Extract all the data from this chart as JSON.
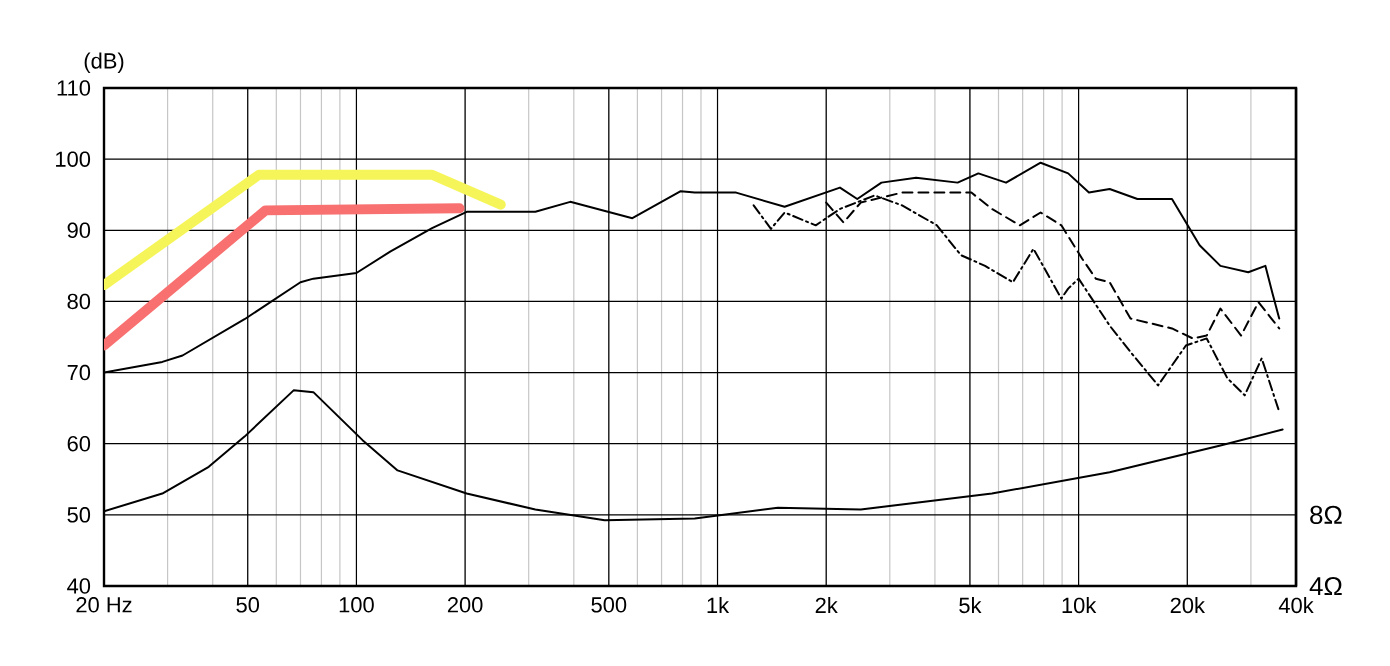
{
  "chart_data": {
    "type": "line",
    "ylabel": "(dB)",
    "log": "x",
    "grid": true,
    "xlim": [
      20,
      40000
    ],
    "ylim": [
      40,
      110
    ],
    "y2lim": [
      4,
      32
    ],
    "xticks": [
      {
        "value": 20,
        "label": "20 Hz"
      },
      50,
      100,
      200,
      500,
      {
        "value": 1000,
        "label": "1k"
      },
      {
        "value": 2000,
        "label": "2k"
      },
      {
        "value": 5000,
        "label": "5k"
      },
      {
        "value": 10000,
        "label": "10k"
      },
      {
        "value": 20000,
        "label": "20k"
      },
      {
        "value": 40000,
        "label": "40k"
      }
    ],
    "yticks": [
      40,
      50,
      60,
      70,
      80,
      90,
      100,
      110
    ],
    "y2ticks": [
      {
        "value": 8,
        "label": "8Ω"
      },
      {
        "value": 4,
        "label": "4Ω"
      }
    ],
    "series": [
      {
        "color": "#000000",
        "line_style": "solid",
        "x": [
          20,
          29,
          33,
          49,
          70,
          76,
          100,
          124,
          162,
          202,
          251,
          313,
          391,
          581,
          791,
          865,
          1126,
          1534,
          2183,
          2438,
          2844,
          3548,
          4623,
          5277,
          6295,
          7850,
          9355,
          10680,
          12190,
          14550,
          18140,
          21630,
          24700,
          29500,
          32900,
          34360,
          35940
        ],
        "values": [
          70,
          71.5,
          72.4,
          77.5,
          82.7,
          83.2,
          84,
          87,
          90.3,
          92.6,
          92.6,
          92.6,
          94,
          91.7,
          95.5,
          95.3,
          95.3,
          93.3,
          96,
          94.4,
          96.7,
          97.4,
          96.7,
          98,
          96.7,
          99.5,
          98,
          95.3,
          95.8,
          94.4,
          94.4,
          87.9,
          85,
          84.1,
          85,
          81.3,
          77.6
        ]
      },
      {
        "color": "#000000",
        "line_style": "dashed",
        "x": [
          2000,
          2233,
          2493,
          3245,
          5047,
          5754,
          6873,
          7850,
          8958,
          10230,
          11160,
          12190,
          13920,
          18140,
          20700,
          22630,
          24700,
          28180,
          31480,
          35940
        ],
        "values": [
          93.9,
          91.1,
          93.9,
          95.3,
          95.3,
          93,
          90.7,
          92.5,
          90.7,
          86,
          83.2,
          82.7,
          77.6,
          76.2,
          74.8,
          75.2,
          79,
          75.2,
          79.9,
          76.2
        ]
      },
      {
        "color": "#000000",
        "line_style": "dotted",
        "x": [
          1259,
          1406,
          1534,
          1871,
          2183,
          2723,
          3245,
          4050,
          4722,
          5508,
          6577,
          7500,
          8958,
          9355,
          10000,
          12190,
          13920,
          16600,
          19820,
          22630,
          25820,
          28840,
          32140,
          35940
        ],
        "values": [
          93.5,
          90.2,
          92.5,
          90.7,
          93,
          94.9,
          93.5,
          90.7,
          86.5,
          85,
          82.7,
          87.4,
          80.4,
          81.8,
          83.2,
          76.6,
          72.9,
          68.2,
          73.8,
          74.8,
          69.2,
          66.8,
          72,
          64.5
        ]
      },
      {
        "color": "#000000",
        "line_style": "solid",
        "axis": "y2",
        "x": [
          20,
          29,
          39,
          49,
          67,
          76,
          104,
          130,
          202,
          313,
          487,
          865,
          1469,
          2493,
          5754,
          12190,
          24700,
          36730
        ],
        "values": [
          8.2,
          9.2,
          10.7,
          12.4,
          15,
          14.9,
          12.2,
          10.5,
          9.2,
          8.3,
          7.7,
          7.8,
          8.4,
          8.3,
          9.2,
          10.4,
          11.9,
          12.8
        ]
      },
      {
        "color": "#f5f55a",
        "line_style": "solid",
        "x": [
          20,
          53.7,
          162,
          251
        ],
        "values": [
          82.3,
          97.8,
          97.8,
          93.6
        ]
      },
      {
        "color": "#f87070",
        "line_style": "solid",
        "x": [
          20,
          56,
          193
        ],
        "values": [
          73.8,
          92.8,
          93.1
        ]
      }
    ]
  }
}
